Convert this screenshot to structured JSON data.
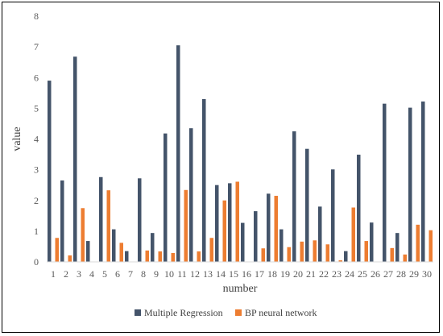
{
  "colors": {
    "multiple_regression": "#44546A",
    "bp_neural_network": "#ED7D31",
    "axis": "#D9D9D9",
    "text": "#595959"
  },
  "chart_data": {
    "type": "bar",
    "xlabel": "number",
    "ylabel": "value",
    "ylim": [
      0,
      8
    ],
    "yticks": [
      0,
      1,
      2,
      3,
      4,
      5,
      6,
      7,
      8
    ],
    "grid": false,
    "legend_position": "bottom",
    "categories": [
      "1",
      "2",
      "3",
      "4",
      "5",
      "6",
      "7",
      "8",
      "9",
      "10",
      "11",
      "12",
      "13",
      "14",
      "15",
      "16",
      "17",
      "18",
      "19",
      "20",
      "21",
      "22",
      "23",
      "24",
      "25",
      "26",
      "27",
      "28",
      "29",
      "30"
    ],
    "series": [
      {
        "name": "Multiple Regression",
        "values": [
          5.9,
          2.65,
          6.68,
          0.68,
          2.76,
          1.06,
          0.35,
          2.72,
          0.94,
          4.18,
          7.05,
          4.35,
          5.3,
          2.5,
          2.56,
          1.27,
          1.65,
          2.22,
          1.06,
          4.25,
          3.68,
          1.8,
          3.01,
          0.35,
          3.49,
          1.28,
          5.15,
          0.94,
          5.02,
          5.22
        ]
      },
      {
        "name": "BP neural network",
        "values": [
          0.78,
          0.21,
          1.75,
          0.0,
          2.33,
          0.62,
          0.0,
          0.37,
          0.34,
          0.29,
          2.34,
          0.34,
          0.78,
          2.0,
          2.61,
          0.0,
          0.44,
          2.15,
          0.48,
          0.66,
          0.7,
          0.57,
          0.05,
          1.77,
          0.68,
          0.0,
          0.45,
          0.24,
          1.21,
          1.03
        ]
      }
    ]
  }
}
